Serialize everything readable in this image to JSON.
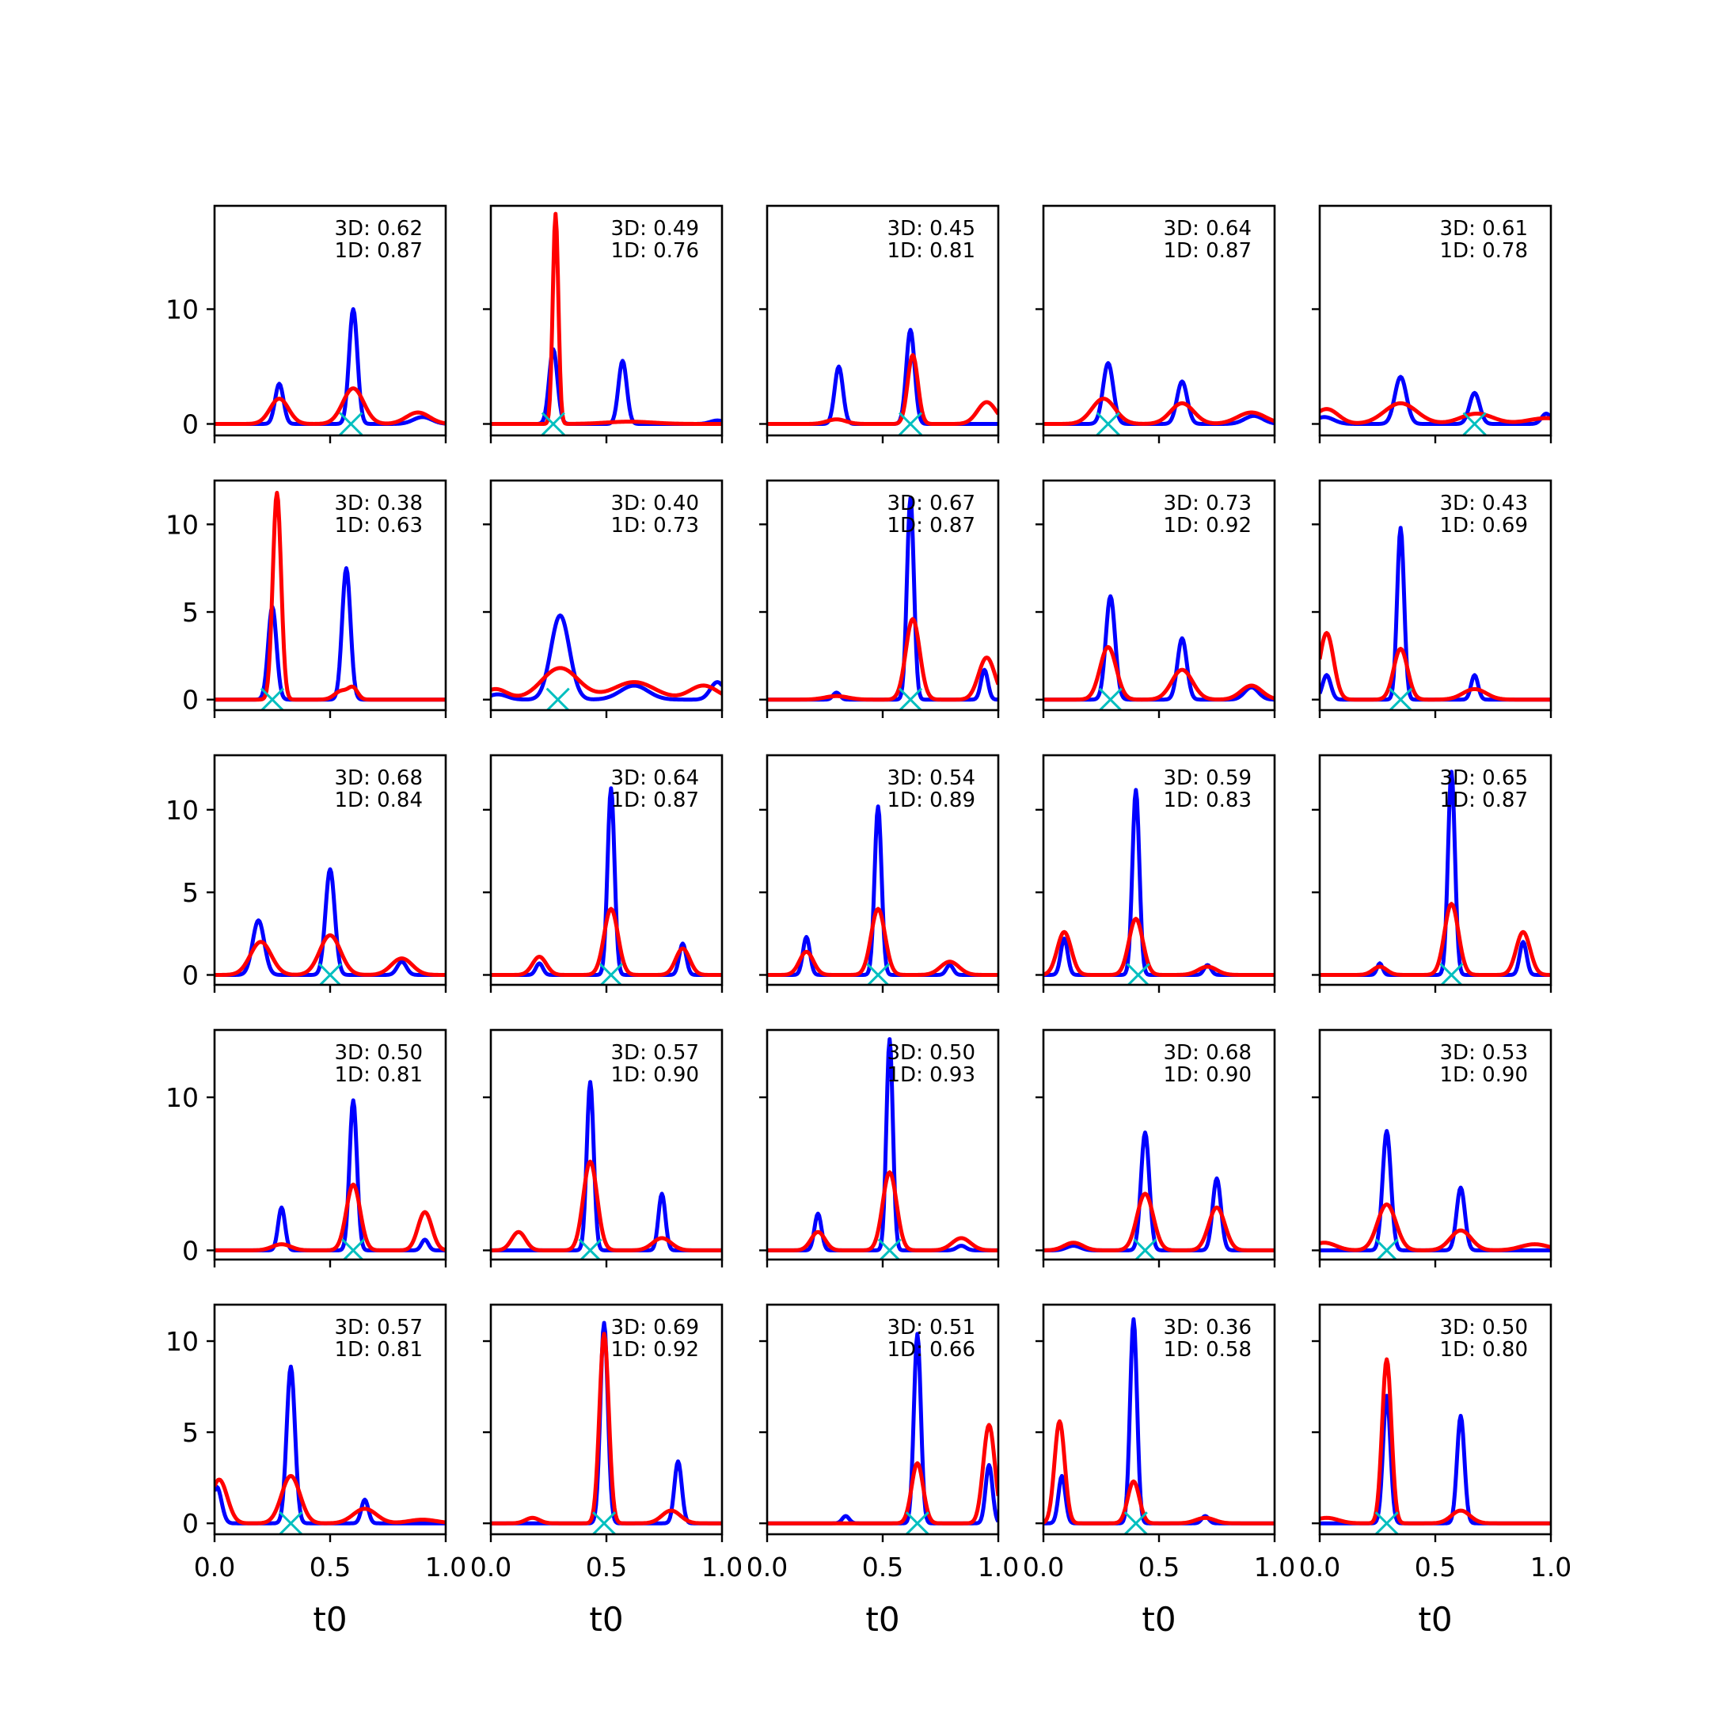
{
  "colors": {
    "series_a": "#0000ff",
    "series_b": "#ff0000",
    "marker": "#00bfbf"
  },
  "x_tick_labels": [
    "0.0",
    "0.5",
    "1.0"
  ],
  "chart_data": {
    "type": "line",
    "layout": "5x5 grid of subplots",
    "xlabel": "t0",
    "xlim": [
      0,
      1
    ],
    "sharey_by_row": true,
    "rows": [
      {
        "ylim": [
          -1,
          19
        ],
        "yticks": [
          0,
          10
        ]
      },
      {
        "ylim": [
          -0.6,
          12.5
        ],
        "yticks": [
          0,
          5,
          10
        ]
      },
      {
        "ylim": [
          -0.6,
          13.3
        ],
        "yticks": [
          0,
          5,
          10
        ]
      },
      {
        "ylim": [
          -0.6,
          14.4
        ],
        "yticks": [
          0,
          10
        ]
      },
      {
        "ylim": [
          -0.6,
          12.0
        ],
        "yticks": [
          0,
          5,
          10
        ]
      }
    ],
    "panels": [
      {
        "annotation": [
          "3D: 0.62",
          "1D: 0.87"
        ],
        "marker_x": 0.59,
        "blue_peaks": [
          [
            0.28,
            3.5,
            0.018
          ],
          [
            0.6,
            10,
            0.018
          ],
          [
            0.9,
            0.6,
            0.04
          ]
        ],
        "red_peaks": [
          [
            0.28,
            2.2,
            0.04
          ],
          [
            0.6,
            3.1,
            0.045
          ],
          [
            0.88,
            1.0,
            0.05
          ]
        ]
      },
      {
        "annotation": [
          "3D: 0.49",
          "1D: 0.76"
        ],
        "marker_x": 0.27,
        "blue_peaks": [
          [
            0.27,
            6.5,
            0.018
          ],
          [
            0.57,
            5.5,
            0.018
          ],
          [
            0.98,
            0.3,
            0.03
          ]
        ],
        "red_peaks": [
          [
            0.28,
            18.3,
            0.012
          ],
          [
            0.6,
            0.2,
            0.1
          ]
        ]
      },
      {
        "annotation": [
          "3D: 0.45",
          "1D: 0.81"
        ],
        "marker_x": 0.62,
        "blue_peaks": [
          [
            0.31,
            5,
            0.018
          ],
          [
            0.62,
            8.2,
            0.018
          ]
        ],
        "red_peaks": [
          [
            0.3,
            0.4,
            0.04
          ],
          [
            0.63,
            6,
            0.022
          ],
          [
            0.95,
            1.9,
            0.04
          ]
        ]
      },
      {
        "annotation": [
          "3D: 0.64",
          "1D: 0.87"
        ],
        "marker_x": 0.28,
        "blue_peaks": [
          [
            0.28,
            5.3,
            0.022
          ],
          [
            0.6,
            3.7,
            0.022
          ],
          [
            0.91,
            0.7,
            0.04
          ]
        ],
        "red_peaks": [
          [
            0.26,
            2.2,
            0.05
          ],
          [
            0.6,
            1.8,
            0.05
          ],
          [
            0.9,
            1.0,
            0.06
          ]
        ]
      },
      {
        "annotation": [
          "3D: 0.61",
          "1D: 0.78"
        ],
        "marker_x": 0.67,
        "blue_peaks": [
          [
            0.02,
            0.6,
            0.04
          ],
          [
            0.35,
            4.1,
            0.025
          ],
          [
            0.67,
            2.7,
            0.022
          ],
          [
            0.98,
            0.9,
            0.02
          ]
        ],
        "red_peaks": [
          [
            0.03,
            1.3,
            0.05
          ],
          [
            0.35,
            1.8,
            0.07
          ],
          [
            0.68,
            0.9,
            0.07
          ],
          [
            0.98,
            0.5,
            0.08
          ]
        ]
      },
      {
        "annotation": [
          "3D: 0.38",
          "1D: 0.63"
        ],
        "marker_x": 0.25,
        "blue_peaks": [
          [
            0.25,
            5.3,
            0.018
          ],
          [
            0.57,
            7.5,
            0.018
          ]
        ],
        "red_peaks": [
          [
            0.27,
            11.8,
            0.018
          ],
          [
            0.55,
            0.5,
            0.03
          ],
          [
            0.6,
            0.6,
            0.02
          ]
        ]
      },
      {
        "annotation": [
          "3D: 0.40",
          "1D: 0.73"
        ],
        "marker_x": 0.29,
        "blue_peaks": [
          [
            0.03,
            0.3,
            0.04
          ],
          [
            0.3,
            4.8,
            0.04
          ],
          [
            0.62,
            0.8,
            0.06
          ],
          [
            0.98,
            1.0,
            0.03
          ]
        ],
        "red_peaks": [
          [
            0.02,
            0.6,
            0.05
          ],
          [
            0.3,
            1.8,
            0.08
          ],
          [
            0.62,
            1.0,
            0.09
          ],
          [
            0.92,
            0.8,
            0.06
          ]
        ]
      },
      {
        "annotation": [
          "3D: 0.67",
          "1D: 0.87"
        ],
        "marker_x": 0.62,
        "blue_peaks": [
          [
            0.3,
            0.4,
            0.015
          ],
          [
            0.62,
            11.5,
            0.015
          ],
          [
            0.94,
            1.7,
            0.015
          ]
        ],
        "red_peaks": [
          [
            0.3,
            0.2,
            0.05
          ],
          [
            0.63,
            4.6,
            0.03
          ],
          [
            0.95,
            2.4,
            0.035
          ]
        ]
      },
      {
        "annotation": [
          "3D: 0.73",
          "1D: 0.92"
        ],
        "marker_x": 0.29,
        "blue_peaks": [
          [
            0.29,
            5.9,
            0.02
          ],
          [
            0.6,
            3.5,
            0.02
          ],
          [
            0.9,
            0.7,
            0.03
          ]
        ],
        "red_peaks": [
          [
            0.28,
            3.0,
            0.035
          ],
          [
            0.6,
            1.7,
            0.045
          ],
          [
            0.9,
            0.8,
            0.045
          ]
        ]
      },
      {
        "annotation": [
          "3D: 0.43",
          "1D: 0.69"
        ],
        "marker_x": 0.35,
        "blue_peaks": [
          [
            0.03,
            1.4,
            0.018
          ],
          [
            0.35,
            9.8,
            0.015
          ],
          [
            0.67,
            1.4,
            0.015
          ]
        ],
        "red_peaks": [
          [
            0.03,
            3.8,
            0.03
          ],
          [
            0.35,
            2.9,
            0.03
          ],
          [
            0.67,
            0.6,
            0.05
          ]
        ]
      },
      {
        "annotation": [
          "3D: 0.68",
          "1D: 0.84"
        ],
        "marker_x": 0.5,
        "blue_peaks": [
          [
            0.19,
            3.3,
            0.025
          ],
          [
            0.5,
            6.4,
            0.02
          ],
          [
            0.81,
            0.8,
            0.02
          ]
        ],
        "red_peaks": [
          [
            0.2,
            2.0,
            0.045
          ],
          [
            0.5,
            2.4,
            0.045
          ],
          [
            0.81,
            1.0,
            0.045
          ]
        ]
      },
      {
        "annotation": [
          "3D: 0.64",
          "1D: 0.87"
        ],
        "marker_x": 0.52,
        "blue_peaks": [
          [
            0.21,
            0.7,
            0.015
          ],
          [
            0.52,
            11.3,
            0.015
          ],
          [
            0.83,
            1.9,
            0.015
          ]
        ],
        "red_peaks": [
          [
            0.21,
            1.1,
            0.03
          ],
          [
            0.52,
            4.0,
            0.03
          ],
          [
            0.83,
            1.6,
            0.03
          ]
        ]
      },
      {
        "annotation": [
          "3D: 0.54",
          "1D: 0.89"
        ],
        "marker_x": 0.48,
        "blue_peaks": [
          [
            0.17,
            2.3,
            0.015
          ],
          [
            0.48,
            10.2,
            0.015
          ],
          [
            0.79,
            0.6,
            0.015
          ]
        ],
        "red_peaks": [
          [
            0.17,
            1.4,
            0.03
          ],
          [
            0.48,
            4.0,
            0.03
          ],
          [
            0.79,
            0.8,
            0.04
          ]
        ]
      },
      {
        "annotation": [
          "3D: 0.59",
          "1D: 0.83"
        ],
        "marker_x": 0.41,
        "blue_peaks": [
          [
            0.09,
            2.2,
            0.015
          ],
          [
            0.4,
            11.2,
            0.015
          ],
          [
            0.71,
            0.6,
            0.015
          ]
        ],
        "red_peaks": [
          [
            0.09,
            2.6,
            0.03
          ],
          [
            0.4,
            3.4,
            0.03
          ],
          [
            0.71,
            0.5,
            0.04
          ]
        ]
      },
      {
        "annotation": [
          "3D: 0.65",
          "1D: 0.87"
        ],
        "marker_x": 0.57,
        "blue_peaks": [
          [
            0.26,
            0.7,
            0.012
          ],
          [
            0.57,
            12.3,
            0.015
          ],
          [
            0.88,
            2.0,
            0.015
          ]
        ],
        "red_peaks": [
          [
            0.26,
            0.5,
            0.03
          ],
          [
            0.57,
            4.3,
            0.03
          ],
          [
            0.88,
            2.6,
            0.03
          ]
        ]
      },
      {
        "annotation": [
          "3D: 0.50",
          "1D: 0.81"
        ],
        "marker_x": 0.6,
        "blue_peaks": [
          [
            0.29,
            2.8,
            0.015
          ],
          [
            0.6,
            9.8,
            0.016
          ],
          [
            0.91,
            0.7,
            0.015
          ]
        ],
        "red_peaks": [
          [
            0.29,
            0.4,
            0.04
          ],
          [
            0.6,
            4.3,
            0.03
          ],
          [
            0.91,
            2.5,
            0.03
          ]
        ]
      },
      {
        "annotation": [
          "3D: 0.57",
          "1D: 0.90"
        ],
        "marker_x": 0.43,
        "blue_peaks": [
          [
            0.43,
            11.0,
            0.015
          ],
          [
            0.74,
            3.7,
            0.015
          ]
        ],
        "red_peaks": [
          [
            0.12,
            1.2,
            0.03
          ],
          [
            0.43,
            5.8,
            0.03
          ],
          [
            0.74,
            0.8,
            0.04
          ]
        ]
      },
      {
        "annotation": [
          "3D: 0.50",
          "1D: 0.93"
        ],
        "marker_x": 0.53,
        "blue_peaks": [
          [
            0.22,
            2.4,
            0.015
          ],
          [
            0.53,
            13.8,
            0.014
          ],
          [
            0.84,
            0.3,
            0.02
          ]
        ],
        "red_peaks": [
          [
            0.22,
            1.2,
            0.03
          ],
          [
            0.53,
            5.1,
            0.03
          ],
          [
            0.84,
            0.8,
            0.04
          ]
        ]
      },
      {
        "annotation": [
          "3D: 0.68",
          "1D: 0.90"
        ],
        "marker_x": 0.44,
        "blue_peaks": [
          [
            0.13,
            0.3,
            0.03
          ],
          [
            0.44,
            7.7,
            0.018
          ],
          [
            0.75,
            4.7,
            0.018
          ]
        ],
        "red_peaks": [
          [
            0.13,
            0.5,
            0.04
          ],
          [
            0.44,
            3.7,
            0.035
          ],
          [
            0.75,
            2.8,
            0.035
          ]
        ]
      },
      {
        "annotation": [
          "3D: 0.53",
          "1D: 0.90"
        ],
        "marker_x": 0.29,
        "blue_peaks": [
          [
            0.29,
            7.8,
            0.018
          ],
          [
            0.61,
            4.1,
            0.018
          ]
        ],
        "red_peaks": [
          [
            0.02,
            0.5,
            0.05
          ],
          [
            0.29,
            3.0,
            0.04
          ],
          [
            0.61,
            1.3,
            0.045
          ],
          [
            0.93,
            0.4,
            0.06
          ]
        ]
      },
      {
        "annotation": [
          "3D: 0.57",
          "1D: 0.81"
        ],
        "marker_x": 0.33,
        "blue_peaks": [
          [
            0.01,
            2.0,
            0.02
          ],
          [
            0.33,
            8.6,
            0.018
          ],
          [
            0.65,
            1.3,
            0.015
          ]
        ],
        "red_peaks": [
          [
            0.02,
            2.4,
            0.035
          ],
          [
            0.33,
            2.6,
            0.04
          ],
          [
            0.65,
            0.8,
            0.05
          ],
          [
            0.9,
            0.2,
            0.06
          ]
        ]
      },
      {
        "annotation": [
          "3D: 0.69",
          "1D: 0.92"
        ],
        "marker_x": 0.49,
        "blue_peaks": [
          [
            0.49,
            11.0,
            0.016
          ],
          [
            0.81,
            3.4,
            0.016
          ]
        ],
        "red_peaks": [
          [
            0.18,
            0.3,
            0.03
          ],
          [
            0.49,
            10.4,
            0.02
          ],
          [
            0.78,
            0.7,
            0.04
          ]
        ]
      },
      {
        "annotation": [
          "3D: 0.51",
          "1D: 0.66"
        ],
        "marker_x": 0.65,
        "blue_peaks": [
          [
            0.34,
            0.4,
            0.015
          ],
          [
            0.65,
            10.4,
            0.015
          ],
          [
            0.96,
            3.2,
            0.015
          ]
        ],
        "red_peaks": [
          [
            0.65,
            3.3,
            0.025
          ],
          [
            0.96,
            5.4,
            0.025
          ]
        ]
      },
      {
        "annotation": [
          "3D: 0.36",
          "1D: 0.58"
        ],
        "marker_x": 0.4,
        "blue_peaks": [
          [
            0.08,
            2.6,
            0.015
          ],
          [
            0.39,
            11.2,
            0.015
          ],
          [
            0.7,
            0.4,
            0.015
          ]
        ],
        "red_peaks": [
          [
            0.07,
            5.6,
            0.022
          ],
          [
            0.39,
            2.3,
            0.025
          ],
          [
            0.7,
            0.3,
            0.04
          ]
        ]
      },
      {
        "annotation": [
          "3D: 0.50",
          "1D: 0.80"
        ],
        "marker_x": 0.29,
        "blue_peaks": [
          [
            0.29,
            7.0,
            0.016
          ],
          [
            0.61,
            5.9,
            0.016
          ]
        ],
        "red_peaks": [
          [
            0.03,
            0.3,
            0.05
          ],
          [
            0.29,
            9.0,
            0.02
          ],
          [
            0.61,
            0.7,
            0.04
          ]
        ]
      }
    ]
  }
}
